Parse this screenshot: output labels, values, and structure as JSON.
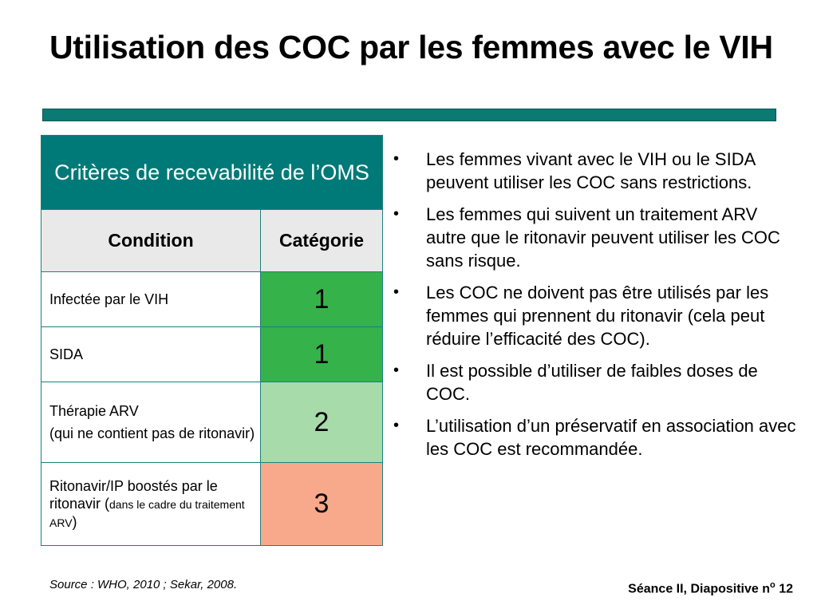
{
  "title": "Utilisation des COC par les femmes avec le VIH",
  "colors": {
    "title_bar": "#0b7a73",
    "table_header": "#007a78",
    "cat1": "#35b24a",
    "cat2": "#a7dcaa",
    "cat3": "#f9a98b"
  },
  "table": {
    "header": "Critères de recevabilité de l’OMS",
    "col_condition": "Condition",
    "col_category": "Catégorie",
    "rows": [
      {
        "condition": "Infectée par le VIH",
        "category": "1"
      },
      {
        "condition": "SIDA",
        "category": "1"
      },
      {
        "condition_line1": "Thérapie ARV",
        "condition_line2": "(qui ne contient pas de ritonavir)",
        "category": "2"
      },
      {
        "condition_main": "Ritonavir/IP boostés par le ritonavir (",
        "condition_small": "dans le cadre du traitement ARV",
        "condition_end": ")",
        "category": "3"
      }
    ]
  },
  "bullets": [
    "Les femmes vivant avec le VIH ou le SIDA peuvent utiliser les COC sans restrictions.",
    "Les femmes qui suivent un traitement ARV autre que le ritonavir peuvent utiliser les COC sans risque.",
    "Les COC ne doivent pas être utilisés par les femmes qui prennent du ritonavir (cela peut réduire l’efficacité des COC).",
    "Il est possible d’utiliser de faibles doses de COC.",
    "L’utilisation d’un préservatif en association avec les COC est recommandée."
  ],
  "bullet_symbol": "•",
  "source": "Source : WHO, 2010 ; Sekar, 2008.",
  "slide_number": {
    "prefix": "Séance II, Diapositive n",
    "sup": "o",
    "number": " 12"
  }
}
